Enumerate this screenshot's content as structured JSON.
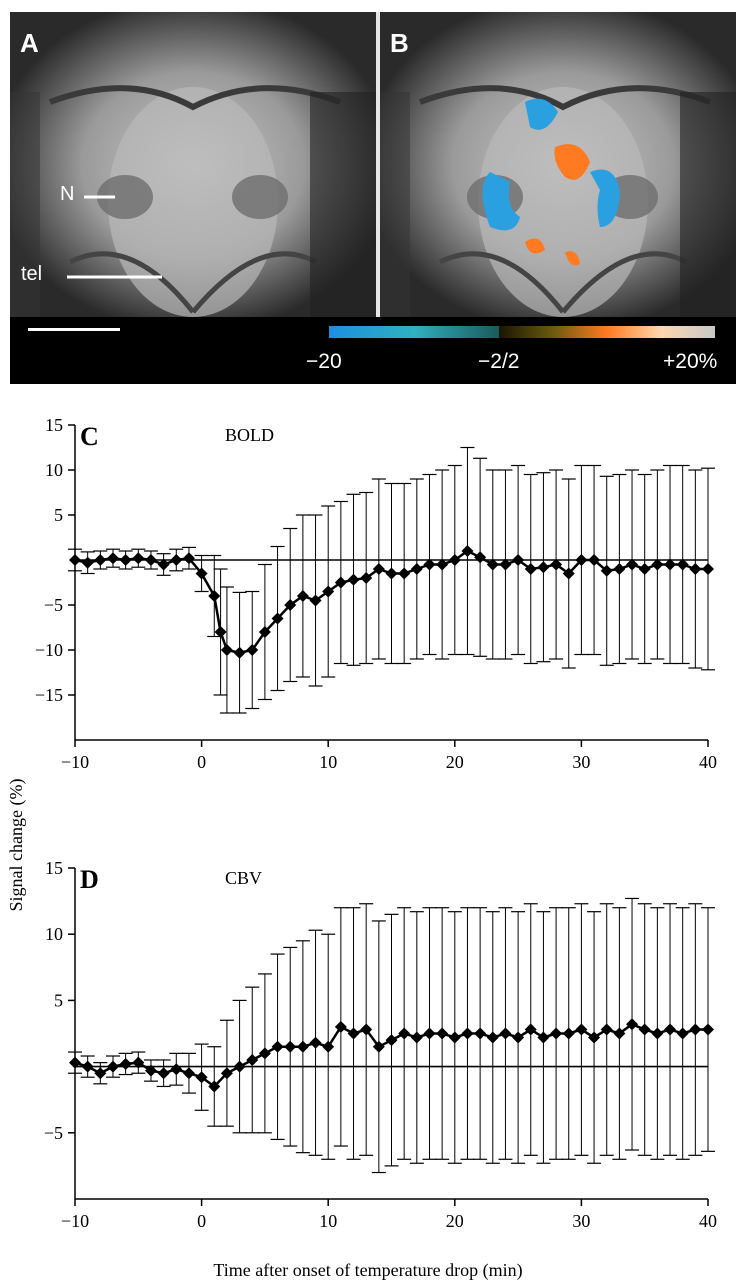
{
  "panels": {
    "a": {
      "letter": "A",
      "label_n": "N",
      "label_tel": "tel"
    },
    "b": {
      "letter": "B"
    },
    "colorbar": {
      "min_label": "−20",
      "mid_label": "−2/2",
      "max_label": "+20%",
      "neg_color": "#2aa0e0",
      "pos_color": "#ff7a20"
    }
  },
  "x_label": "Time after onset of temperature drop (min)",
  "y_label": "Signal change (%)",
  "chart_data": [
    {
      "type": "line",
      "panel": "C",
      "title": "BOLD",
      "xlabel": "Time after onset of temperature drop (min)",
      "ylabel": "Signal change (%)",
      "xlim": [
        -10,
        40
      ],
      "ylim": [
        -20,
        15
      ],
      "xticks": [
        -10,
        0,
        10,
        20,
        30,
        40
      ],
      "yticks": [
        -15,
        -10,
        -5,
        5,
        10,
        15
      ],
      "baseline": 0,
      "series": [
        {
          "x": [
            -10,
            -9,
            -8,
            -7,
            -6,
            -5,
            -4,
            -3,
            -2,
            -1,
            0,
            1,
            1.5,
            2,
            3,
            4,
            5,
            6,
            7,
            8,
            9,
            10,
            11,
            12,
            13,
            14,
            15,
            16,
            17,
            18,
            19,
            20,
            21,
            22,
            23,
            24,
            25,
            26,
            27,
            28,
            29,
            30,
            31,
            32,
            33,
            34,
            35,
            36,
            37,
            38,
            39,
            40
          ],
          "y": [
            0,
            -0.3,
            0,
            0.2,
            0,
            0.2,
            0,
            -0.5,
            0,
            0.2,
            -1.5,
            -4,
            -8,
            -10,
            -10.3,
            -10,
            -8,
            -6.5,
            -5,
            -4,
            -4.5,
            -3.5,
            -2.5,
            -2.2,
            -2,
            -1,
            -1.5,
            -1.5,
            -1,
            -0.5,
            -0.5,
            0,
            1,
            0.3,
            -0.5,
            -0.5,
            0,
            -1,
            -0.8,
            -0.5,
            -1.5,
            0,
            0,
            -1.2,
            -1,
            -0.5,
            -1,
            -0.5,
            -0.5,
            -0.5,
            -1,
            -1
          ],
          "err": [
            1.2,
            1.2,
            1.0,
            1.0,
            1.0,
            1.0,
            1.0,
            1.2,
            1.2,
            1.2,
            2.0,
            4.5,
            7.0,
            7.0,
            6.7,
            6.5,
            7.5,
            8.0,
            8.5,
            9.0,
            9.5,
            9.5,
            9.0,
            9.5,
            9.5,
            10.0,
            10.0,
            10.0,
            10.0,
            10.0,
            10.5,
            10.5,
            11.5,
            11.0,
            10.5,
            10.5,
            10.5,
            10.5,
            10.5,
            10.5,
            10.5,
            10.5,
            10.5,
            10.5,
            10.5,
            10.5,
            10.5,
            10.5,
            11.0,
            11.0,
            11.0,
            11.2
          ]
        }
      ]
    },
    {
      "type": "line",
      "panel": "D",
      "title": "CBV",
      "xlabel": "Time after onset of temperature drop (min)",
      "ylabel": "Signal change (%)",
      "xlim": [
        -10,
        40
      ],
      "ylim": [
        -10,
        15
      ],
      "xticks": [
        -10,
        0,
        10,
        20,
        30,
        40
      ],
      "yticks": [
        -5,
        5,
        10,
        15
      ],
      "baseline": 0,
      "series": [
        {
          "x": [
            -10,
            -9,
            -8,
            -7,
            -6,
            -5,
            -4,
            -3,
            -2,
            -1,
            0,
            1,
            2,
            3,
            4,
            5,
            6,
            7,
            8,
            9,
            10,
            11,
            12,
            13,
            14,
            15,
            16,
            17,
            18,
            19,
            20,
            21,
            22,
            23,
            24,
            25,
            26,
            27,
            28,
            29,
            30,
            31,
            32,
            33,
            34,
            35,
            36,
            37,
            38,
            39,
            40
          ],
          "y": [
            0.3,
            0,
            -0.5,
            0,
            0.2,
            0.3,
            -0.3,
            -0.5,
            -0.2,
            -0.5,
            -0.8,
            -1.5,
            -0.5,
            0,
            0.5,
            1,
            1.5,
            1.5,
            1.5,
            1.8,
            1.5,
            3,
            2.5,
            2.8,
            1.5,
            2,
            2.5,
            2.2,
            2.5,
            2.5,
            2.2,
            2.5,
            2.5,
            2.2,
            2.5,
            2.2,
            2.8,
            2.2,
            2.5,
            2.5,
            2.8,
            2.2,
            2.8,
            2.5,
            3.2,
            2.8,
            2.5,
            2.8,
            2.5,
            2.8,
            2.8
          ],
          "err": [
            0.8,
            0.8,
            0.8,
            0.8,
            0.8,
            0.8,
            0.8,
            1.0,
            1.2,
            1.5,
            2.5,
            3.0,
            4.0,
            5.0,
            5.5,
            6.0,
            7.0,
            7.5,
            8.0,
            8.5,
            8.5,
            9.0,
            9.5,
            9.5,
            9.5,
            9.5,
            9.5,
            9.5,
            9.5,
            9.5,
            9.5,
            9.5,
            9.5,
            9.5,
            9.5,
            9.5,
            9.5,
            9.5,
            9.5,
            9.5,
            9.5,
            9.5,
            9.5,
            9.5,
            9.5,
            9.5,
            9.5,
            9.5,
            9.5,
            9.5,
            9.2
          ]
        }
      ]
    }
  ]
}
